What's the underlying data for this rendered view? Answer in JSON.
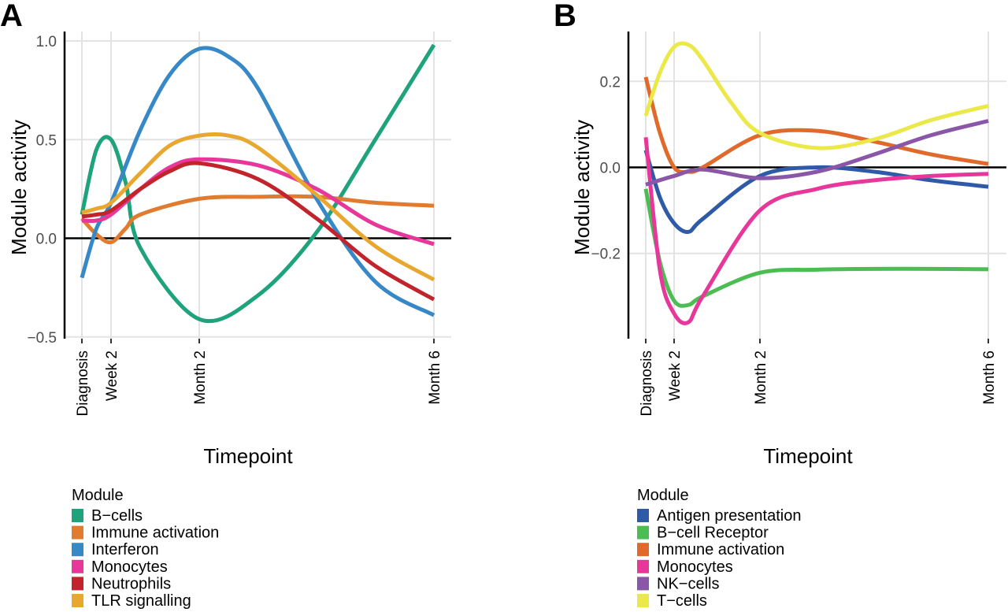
{
  "chart_data": [
    {
      "panel": "A",
      "type": "line",
      "xlabel": "Timepoint",
      "ylabel": "Module activity",
      "x_ticks": [
        "Diagnosis",
        "Week 2",
        "Month 2",
        "Month 6"
      ],
      "y_ticks": [
        "1.0",
        "0.5",
        "0.0",
        "−0.5"
      ],
      "ylim": [
        -0.5,
        1.05
      ],
      "grid": true,
      "legend": {
        "title": "Module",
        "position": "bottom-left"
      },
      "series": [
        {
          "name": "B−cells",
          "color": "#1fa37c",
          "x": [
            0,
            0.25,
            0.5,
            0.75,
            1,
            2,
            3,
            4,
            5,
            6
          ],
          "y": [
            0.12,
            0.45,
            0.5,
            0.28,
            -0.05,
            -0.41,
            -0.29,
            0.03,
            0.5,
            0.98
          ]
        },
        {
          "name": "Immune activation",
          "color": "#e07b30",
          "x": [
            0,
            0.25,
            0.5,
            0.75,
            1,
            2,
            3,
            4,
            5,
            6
          ],
          "y": [
            0.1,
            0.02,
            -0.02,
            0.05,
            0.12,
            0.2,
            0.21,
            0.21,
            0.18,
            0.165
          ]
        },
        {
          "name": "Interferon",
          "color": "#3788c7",
          "x": [
            0,
            0.25,
            0.5,
            1,
            1.5,
            2,
            2.5,
            3,
            4,
            5,
            6
          ],
          "y": [
            -0.2,
            0.05,
            0.18,
            0.55,
            0.83,
            0.96,
            0.92,
            0.76,
            0.2,
            -0.22,
            -0.39
          ]
        },
        {
          "name": "Monocytes",
          "color": "#e8379b",
          "x": [
            0,
            0.25,
            0.5,
            1,
            1.5,
            2,
            3,
            4,
            5,
            6
          ],
          "y": [
            0.09,
            0.09,
            0.12,
            0.25,
            0.36,
            0.4,
            0.37,
            0.25,
            0.07,
            -0.03
          ]
        },
        {
          "name": "Neutrophils",
          "color": "#c2242b",
          "x": [
            0,
            0.25,
            0.5,
            1,
            1.5,
            2,
            3,
            4,
            5,
            6
          ],
          "y": [
            0.11,
            0.12,
            0.14,
            0.25,
            0.34,
            0.38,
            0.3,
            0.1,
            -0.14,
            -0.31
          ]
        },
        {
          "name": "TLR signalling",
          "color": "#e8a830",
          "x": [
            0,
            0.25,
            0.5,
            1,
            1.5,
            2,
            2.5,
            3,
            4,
            5,
            6
          ],
          "y": [
            0.13,
            0.15,
            0.18,
            0.33,
            0.47,
            0.52,
            0.52,
            0.46,
            0.22,
            -0.04,
            -0.21
          ]
        }
      ]
    },
    {
      "panel": "B",
      "type": "line",
      "xlabel": "Timepoint",
      "ylabel": "Module activity",
      "x_ticks": [
        "Diagnosis",
        "Week 2",
        "Month 2",
        "Month 6"
      ],
      "y_ticks": [
        "0.2",
        "0.0",
        "−0.2"
      ],
      "ylim": [
        -0.395,
        0.315
      ],
      "grid": true,
      "legend": {
        "title": "Module",
        "position": "bottom-left"
      },
      "series": [
        {
          "name": "Antigen presentation",
          "color": "#2e5aa8",
          "x": [
            0,
            0.25,
            0.5,
            0.75,
            1,
            2,
            3,
            4,
            5,
            6
          ],
          "y": [
            0.04,
            -0.07,
            -0.13,
            -0.15,
            -0.12,
            -0.02,
            0.0,
            -0.01,
            -0.03,
            -0.045
          ]
        },
        {
          "name": "B−cell Receptor",
          "color": "#4cbd52",
          "x": [
            0,
            0.25,
            0.5,
            0.75,
            1,
            2,
            3,
            4,
            5,
            6
          ],
          "y": [
            -0.05,
            -0.22,
            -0.31,
            -0.32,
            -0.3,
            -0.245,
            -0.238,
            -0.236,
            -0.236,
            -0.237
          ]
        },
        {
          "name": "Immune activation",
          "color": "#e06a2c",
          "x": [
            0,
            0.25,
            0.5,
            0.75,
            1,
            2,
            3,
            4,
            5,
            6
          ],
          "y": [
            0.21,
            0.08,
            0.0,
            -0.01,
            0.0,
            0.075,
            0.085,
            0.06,
            0.03,
            0.008
          ]
        },
        {
          "name": "Monocytes",
          "color": "#e8379b",
          "x": [
            0,
            0.25,
            0.5,
            0.75,
            1,
            2,
            3,
            4,
            5,
            6
          ],
          "y": [
            0.07,
            -0.24,
            -0.34,
            -0.36,
            -0.3,
            -0.1,
            -0.05,
            -0.03,
            -0.02,
            -0.015
          ]
        },
        {
          "name": "NK−cells",
          "color": "#8a56a8",
          "x": [
            0,
            0.5,
            1,
            2,
            3,
            4,
            5,
            6
          ],
          "y": [
            -0.04,
            -0.02,
            -0.005,
            -0.025,
            -0.01,
            0.03,
            0.075,
            0.108
          ]
        },
        {
          "name": "T−cells",
          "color": "#ebe84a",
          "x": [
            0,
            0.25,
            0.5,
            0.75,
            1,
            1.5,
            2,
            3,
            4,
            5,
            6
          ],
          "y": [
            0.12,
            0.22,
            0.28,
            0.285,
            0.25,
            0.15,
            0.08,
            0.045,
            0.065,
            0.11,
            0.143
          ]
        }
      ]
    }
  ]
}
